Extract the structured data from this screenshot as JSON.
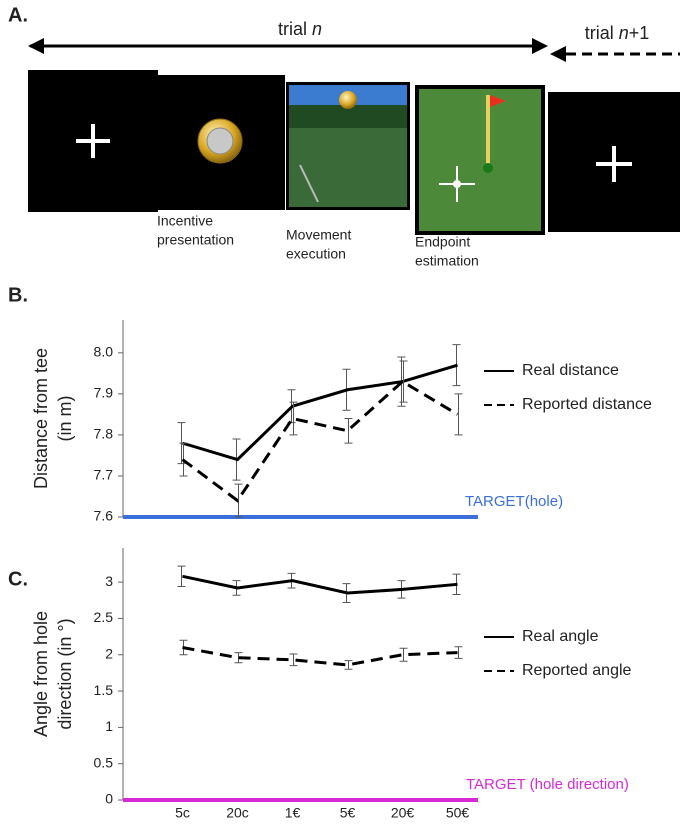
{
  "panel_a": {
    "label": "A.",
    "trial_n": [
      "trial",
      "n"
    ],
    "trial_next": [
      "trial",
      "n",
      "+1"
    ],
    "captions": [
      [
        "Incentive",
        "presentation"
      ],
      [
        "Movement",
        "execution"
      ],
      [
        "Endpoint",
        "estimation"
      ]
    ]
  },
  "chart_data": [
    {
      "type": "line",
      "panel": "B.",
      "ylabel": [
        "Distance from tee",
        "(in m)"
      ],
      "categories": [
        "5c",
        "20c",
        "1€",
        "5€",
        "20€",
        "50€"
      ],
      "show_categories": false,
      "series": [
        {
          "name": "Real distance",
          "color": "#000000",
          "style": "solid",
          "values": [
            7.78,
            7.74,
            7.87,
            7.91,
            7.93,
            7.97
          ],
          "errors": [
            0.05,
            0.05,
            0.04,
            0.05,
            0.06,
            0.05
          ]
        },
        {
          "name": "Reported distance",
          "color": "#000000",
          "style": "dashed",
          "values": [
            7.74,
            7.64,
            7.84,
            7.81,
            7.93,
            7.85
          ],
          "errors": [
            0.04,
            0.04,
            0.04,
            0.03,
            0.05,
            0.05
          ]
        }
      ],
      "ylim": [
        7.6,
        8.08
      ],
      "yticks": [
        {
          "value": 7.6,
          "label": "7.6"
        },
        7.7,
        7.8,
        7.9,
        {
          "value": 8,
          "label": "8.0"
        }
      ],
      "target": {
        "label": "TARGET(hole)",
        "color": "#3a6fdc"
      }
    },
    {
      "type": "line",
      "panel": "C.",
      "ylabel": [
        "Angle from hole",
        "direction (in °)"
      ],
      "categories": [
        "5c",
        "20c",
        "1€",
        "5€",
        "20€",
        "50€"
      ],
      "show_categories": true,
      "series": [
        {
          "name": "Real angle",
          "color": "#000000",
          "style": "solid",
          "values": [
            3.08,
            2.92,
            3.02,
            2.85,
            2.9,
            2.97
          ],
          "errors": [
            0.14,
            0.1,
            0.1,
            0.13,
            0.12,
            0.14
          ]
        },
        {
          "name": "Reported angle",
          "color": "#000000",
          "style": "dashed",
          "values": [
            2.1,
            1.96,
            1.93,
            1.86,
            2.0,
            2.03
          ],
          "errors": [
            0.1,
            0.07,
            0.08,
            0.06,
            0.09,
            0.08
          ]
        }
      ],
      "ylim": [
        0,
        3.47
      ],
      "yticks": [
        0,
        0.5,
        1,
        1.5,
        2,
        2.5,
        3
      ],
      "target": {
        "label": "TARGET (hole direction)",
        "color": "#d62ad6"
      }
    }
  ]
}
